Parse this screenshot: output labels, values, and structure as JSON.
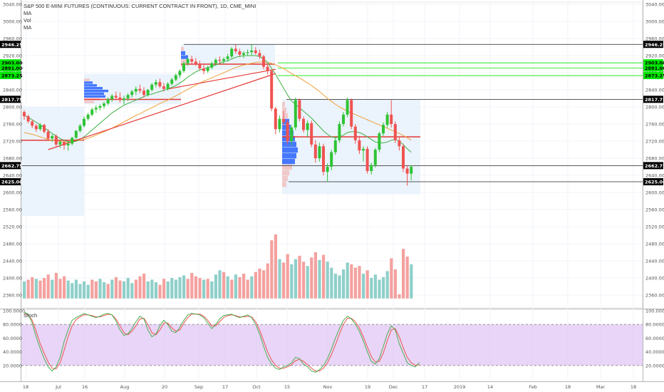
{
  "legend": {
    "title": "S&P 500 E-MINI FUTURES (CONTINUOUS: CURRENT CONTRACT IN FRONT), 1D, CME_MINI",
    "ma1": "MA",
    "vol": "Vol",
    "ma2": "MA"
  },
  "stoch_label": "Stoch",
  "colors": {
    "up": "#26a69a",
    "up_bright": "#2fc335",
    "down": "#ef5350",
    "vol_up": "#8fcfc9",
    "vol_down": "#f4a19f",
    "ma_fast": "#3cb043",
    "ma_slow": "#f0a13a",
    "trend": "#e53935",
    "level_green": "#00e600",
    "stoch_k": "#4caf50",
    "stoch_d": "#ef5350",
    "stoch_band": "#e2cbf5"
  },
  "chart_data": {
    "type": "candlestick",
    "price_axis_labels": [
      "3040.00",
      "3000.00",
      "2960.00",
      "2920.00",
      "2880.00",
      "2840.00",
      "2800.00",
      "2760.00",
      "2720.00",
      "2680.00",
      "2640.00",
      "2600.00",
      "2560.00",
      "2520.00",
      "2480.00",
      "2440.00",
      "2400.00",
      "2360.00"
    ],
    "price_range": [
      2330,
      3045
    ],
    "price_flags": [
      {
        "text": "2946.25",
        "value": 2946.25,
        "color": "#000000"
      },
      {
        "text": "2903.00",
        "value": 2903.0,
        "color": "#00e600"
      },
      {
        "text": "2891.00",
        "value": 2891.0,
        "color": "#00e600"
      },
      {
        "text": "2873.25",
        "value": 2873.25,
        "color": "#00e600"
      },
      {
        "text": "2817.75",
        "value": 2817.75,
        "color": "#000000"
      },
      {
        "text": "2662.75",
        "value": 2662.75,
        "color": "#000000"
      },
      {
        "text": "2625.00",
        "value": 2625.0,
        "color": "#000000"
      }
    ],
    "stoch_axis_labels": [
      "100.0000",
      "80.0000",
      "60.0000",
      "40.0000",
      "20.0000"
    ],
    "stoch_range": [
      0,
      100
    ],
    "stoch_band": [
      20,
      80
    ],
    "x_axis_labels": [
      "18",
      "Jul",
      "16",
      "Aug",
      "20",
      "Sep",
      "17",
      "Oct",
      "15",
      "Nov",
      "19",
      "Dec",
      "17",
      "2019",
      "14",
      "Feb",
      "18",
      "Mar",
      "18"
    ],
    "candles": [
      [
        2788,
        2792,
        2770,
        2778
      ],
      [
        2778,
        2782,
        2762,
        2766
      ],
      [
        2766,
        2770,
        2750,
        2756
      ],
      [
        2756,
        2760,
        2742,
        2748
      ],
      [
        2748,
        2762,
        2744,
        2758
      ],
      [
        2758,
        2760,
        2738,
        2742
      ],
      [
        2742,
        2748,
        2720,
        2726
      ],
      [
        2726,
        2736,
        2718,
        2732
      ],
      [
        2732,
        2736,
        2708,
        2712
      ],
      [
        2712,
        2722,
        2704,
        2718
      ],
      [
        2718,
        2724,
        2700,
        2710
      ],
      [
        2710,
        2718,
        2698,
        2714
      ],
      [
        2714,
        2730,
        2710,
        2728
      ],
      [
        2728,
        2746,
        2724,
        2744
      ],
      [
        2744,
        2760,
        2740,
        2756
      ],
      [
        2756,
        2778,
        2752,
        2772
      ],
      [
        2772,
        2786,
        2768,
        2782
      ],
      [
        2782,
        2798,
        2778,
        2794
      ],
      [
        2794,
        2804,
        2786,
        2798
      ],
      [
        2798,
        2806,
        2792,
        2802
      ],
      [
        2802,
        2812,
        2796,
        2808
      ],
      [
        2808,
        2822,
        2804,
        2818
      ],
      [
        2818,
        2830,
        2812,
        2826
      ],
      [
        2826,
        2836,
        2816,
        2822
      ],
      [
        2822,
        2834,
        2810,
        2816
      ],
      [
        2816,
        2826,
        2806,
        2820
      ],
      [
        2820,
        2832,
        2814,
        2828
      ],
      [
        2828,
        2840,
        2822,
        2836
      ],
      [
        2836,
        2848,
        2828,
        2842
      ],
      [
        2842,
        2852,
        2832,
        2838
      ],
      [
        2838,
        2846,
        2822,
        2828
      ],
      [
        2828,
        2842,
        2824,
        2840
      ],
      [
        2840,
        2856,
        2836,
        2852
      ],
      [
        2852,
        2864,
        2846,
        2858
      ],
      [
        2858,
        2866,
        2844,
        2848
      ],
      [
        2848,
        2856,
        2836,
        2842
      ],
      [
        2842,
        2858,
        2838,
        2854
      ],
      [
        2854,
        2868,
        2850,
        2864
      ],
      [
        2864,
        2878,
        2860,
        2874
      ],
      [
        2874,
        2888,
        2868,
        2884
      ],
      [
        2884,
        2906,
        2880,
        2902
      ],
      [
        2902,
        2916,
        2896,
        2912
      ],
      [
        2912,
        2920,
        2900,
        2906
      ],
      [
        2906,
        2914,
        2896,
        2900
      ],
      [
        2900,
        2908,
        2886,
        2890
      ],
      [
        2890,
        2898,
        2876,
        2884
      ],
      [
        2884,
        2896,
        2880,
        2892
      ],
      [
        2892,
        2906,
        2888,
        2902
      ],
      [
        2902,
        2914,
        2896,
        2910
      ],
      [
        2910,
        2918,
        2902,
        2908
      ],
      [
        2908,
        2916,
        2900,
        2912
      ],
      [
        2912,
        2924,
        2906,
        2918
      ],
      [
        2918,
        2940,
        2914,
        2936
      ],
      [
        2936,
        2946,
        2924,
        2930
      ],
      [
        2930,
        2936,
        2918,
        2922
      ],
      [
        2922,
        2930,
        2914,
        2926
      ],
      [
        2926,
        2934,
        2920,
        2928
      ],
      [
        2928,
        2946,
        2920,
        2932
      ],
      [
        2932,
        2940,
        2922,
        2926
      ],
      [
        2926,
        2934,
        2912,
        2918
      ],
      [
        2918,
        2922,
        2888,
        2894
      ],
      [
        2894,
        2900,
        2876,
        2884
      ],
      [
        2884,
        2888,
        2790,
        2796
      ],
      [
        2796,
        2800,
        2736,
        2748
      ],
      [
        2748,
        2780,
        2740,
        2772
      ],
      [
        2772,
        2790,
        2756,
        2764
      ],
      [
        2764,
        2770,
        2712,
        2720
      ],
      [
        2720,
        2758,
        2710,
        2752
      ],
      [
        2752,
        2822,
        2746,
        2816
      ],
      [
        2816,
        2820,
        2766,
        2772
      ],
      [
        2772,
        2778,
        2740,
        2746
      ],
      [
        2746,
        2768,
        2730,
        2762
      ],
      [
        2762,
        2768,
        2706,
        2712
      ],
      [
        2712,
        2722,
        2670,
        2680
      ],
      [
        2680,
        2716,
        2672,
        2708
      ],
      [
        2708,
        2714,
        2640,
        2648
      ],
      [
        2648,
        2668,
        2624,
        2660
      ],
      [
        2660,
        2700,
        2652,
        2694
      ],
      [
        2694,
        2728,
        2688,
        2722
      ],
      [
        2722,
        2766,
        2716,
        2760
      ],
      [
        2760,
        2788,
        2754,
        2782
      ],
      [
        2782,
        2822,
        2776,
        2816
      ],
      [
        2816,
        2820,
        2748,
        2754
      ],
      [
        2754,
        2760,
        2714,
        2722
      ],
      [
        2722,
        2732,
        2690,
        2698
      ],
      [
        2698,
        2708,
        2672,
        2702
      ],
      [
        2702,
        2708,
        2644,
        2650
      ],
      [
        2650,
        2670,
        2642,
        2664
      ],
      [
        2664,
        2704,
        2658,
        2700
      ],
      [
        2700,
        2742,
        2694,
        2738
      ],
      [
        2738,
        2764,
        2732,
        2758
      ],
      [
        2758,
        2788,
        2752,
        2782
      ],
      [
        2782,
        2816,
        2752,
        2760
      ],
      [
        2760,
        2766,
        2716,
        2722
      ],
      [
        2722,
        2730,
        2698,
        2708
      ],
      [
        2708,
        2714,
        2648,
        2656
      ],
      [
        2656,
        2664,
        2616,
        2644
      ],
      [
        2644,
        2664,
        2628,
        2660
      ]
    ],
    "volume": [
      [
        2392,
        "up"
      ],
      [
        2396,
        "down"
      ],
      [
        2402,
        "down"
      ],
      [
        2398,
        "up"
      ],
      [
        2394,
        "down"
      ],
      [
        2400,
        "down"
      ],
      [
        2408,
        "down"
      ],
      [
        2396,
        "up"
      ],
      [
        2412,
        "down"
      ],
      [
        2398,
        "down"
      ],
      [
        2404,
        "down"
      ],
      [
        2394,
        "up"
      ],
      [
        2388,
        "up"
      ],
      [
        2396,
        "up"
      ],
      [
        2386,
        "up"
      ],
      [
        2392,
        "up"
      ],
      [
        2384,
        "up"
      ],
      [
        2396,
        "down"
      ],
      [
        2392,
        "down"
      ],
      [
        2398,
        "up"
      ],
      [
        2390,
        "up"
      ],
      [
        2386,
        "down"
      ],
      [
        2396,
        "up"
      ],
      [
        2402,
        "down"
      ],
      [
        2394,
        "down"
      ],
      [
        2392,
        "up"
      ],
      [
        2400,
        "up"
      ],
      [
        2388,
        "up"
      ],
      [
        2396,
        "down"
      ],
      [
        2404,
        "down"
      ],
      [
        2410,
        "down"
      ],
      [
        2392,
        "up"
      ],
      [
        2396,
        "up"
      ],
      [
        2390,
        "up"
      ],
      [
        2384,
        "down"
      ],
      [
        2398,
        "down"
      ],
      [
        2392,
        "up"
      ],
      [
        2400,
        "up"
      ],
      [
        2396,
        "up"
      ],
      [
        2402,
        "up"
      ],
      [
        2406,
        "up"
      ],
      [
        2398,
        "down"
      ],
      [
        2412,
        "down"
      ],
      [
        2404,
        "down"
      ],
      [
        2400,
        "down"
      ],
      [
        2396,
        "up"
      ],
      [
        2398,
        "down"
      ],
      [
        2392,
        "up"
      ],
      [
        2408,
        "up"
      ],
      [
        2418,
        "up"
      ],
      [
        2414,
        "down"
      ],
      [
        2404,
        "up"
      ],
      [
        2396,
        "down"
      ],
      [
        2408,
        "up"
      ],
      [
        2402,
        "down"
      ],
      [
        2410,
        "down"
      ],
      [
        2396,
        "down"
      ],
      [
        2404,
        "up"
      ],
      [
        2414,
        "down"
      ],
      [
        2422,
        "down"
      ],
      [
        2418,
        "down"
      ],
      [
        2434,
        "down"
      ],
      [
        2488,
        "down"
      ],
      [
        2502,
        "down"
      ],
      [
        2444,
        "up"
      ],
      [
        2436,
        "down"
      ],
      [
        2456,
        "down"
      ],
      [
        2432,
        "up"
      ],
      [
        2444,
        "up"
      ],
      [
        2452,
        "down"
      ],
      [
        2438,
        "down"
      ],
      [
        2428,
        "up"
      ],
      [
        2448,
        "down"
      ],
      [
        2460,
        "down"
      ],
      [
        2442,
        "up"
      ],
      [
        2454,
        "down"
      ],
      [
        2438,
        "up"
      ],
      [
        2424,
        "up"
      ],
      [
        2410,
        "up"
      ],
      [
        2406,
        "up"
      ],
      [
        2420,
        "up"
      ],
      [
        2436,
        "up"
      ],
      [
        2432,
        "down"
      ],
      [
        2424,
        "down"
      ],
      [
        2428,
        "down"
      ],
      [
        2410,
        "up"
      ],
      [
        2418,
        "down"
      ],
      [
        2400,
        "up"
      ],
      [
        2408,
        "up"
      ],
      [
        2396,
        "up"
      ],
      [
        2402,
        "up"
      ],
      [
        2416,
        "up"
      ],
      [
        2446,
        "down"
      ],
      [
        2420,
        "down"
      ],
      [
        2362,
        "down"
      ],
      [
        2468,
        "down"
      ],
      [
        2450,
        "down"
      ],
      [
        2432,
        "up"
      ]
    ],
    "stoch_k": [
      98,
      95,
      82,
      62,
      45,
      30,
      18,
      12,
      18,
      32,
      55,
      72,
      86,
      90,
      93,
      96,
      94,
      92,
      90,
      92,
      95,
      96,
      94,
      85,
      72,
      64,
      66,
      74,
      84,
      92,
      88,
      72,
      62,
      66,
      78,
      86,
      80,
      70,
      68,
      76,
      86,
      94,
      96,
      95,
      94,
      90,
      82,
      74,
      80,
      88,
      93,
      94,
      95,
      92,
      90,
      92,
      94,
      90,
      80,
      66,
      48,
      32,
      22,
      16,
      14,
      18,
      20,
      24,
      32,
      30,
      22,
      18,
      12,
      10,
      14,
      20,
      30,
      44,
      60,
      74,
      86,
      92,
      88,
      80,
      70,
      56,
      40,
      26,
      22,
      30,
      48,
      66,
      78,
      72,
      52,
      38,
      24,
      20,
      18,
      24
    ],
    "stoch_d": [
      96,
      94,
      86,
      70,
      52,
      38,
      25,
      16,
      15,
      24,
      42,
      62,
      78,
      87,
      91,
      94,
      94,
      93,
      91,
      91,
      93,
      95,
      94,
      88,
      78,
      68,
      65,
      70,
      78,
      88,
      89,
      80,
      68,
      65,
      72,
      82,
      82,
      75,
      70,
      72,
      82,
      90,
      95,
      95,
      95,
      92,
      86,
      78,
      78,
      84,
      90,
      93,
      94,
      93,
      91,
      91,
      92,
      91,
      84,
      72,
      56,
      40,
      28,
      20,
      16,
      16,
      18,
      21,
      27,
      29,
      26,
      21,
      16,
      12,
      12,
      16,
      24,
      36,
      50,
      66,
      80,
      89,
      89,
      84,
      75,
      62,
      47,
      33,
      25,
      26,
      38,
      56,
      72,
      74,
      62,
      46,
      32,
      24,
      20,
      21
    ],
    "ma_fast": [
      2780,
      2776,
      2770,
      2764,
      2758,
      2752,
      2744,
      2738,
      2732,
      2726,
      2722,
      2719,
      2718,
      2720,
      2724,
      2730,
      2738,
      2746,
      2754,
      2762,
      2770,
      2778,
      2786,
      2792,
      2798,
      2804,
      2808,
      2812,
      2816,
      2820,
      2824,
      2828,
      2830,
      2833,
      2836,
      2839,
      2842,
      2846,
      2850,
      2856,
      2862,
      2870,
      2876,
      2882,
      2886,
      2889,
      2892,
      2895,
      2898,
      2902,
      2906,
      2908,
      2912,
      2916,
      2918,
      2920,
      2920,
      2920,
      2920,
      2918,
      2912,
      2904,
      2890,
      2876,
      2860,
      2844,
      2828,
      2814,
      2806,
      2798,
      2790,
      2782,
      2774,
      2764,
      2754,
      2744,
      2736,
      2730,
      2728,
      2730,
      2734,
      2740,
      2742,
      2742,
      2740,
      2736,
      2730,
      2724,
      2718,
      2716,
      2716,
      2718,
      2722,
      2724,
      2720,
      2712,
      2702,
      2694
    ],
    "ma_slow": [
      2740,
      2738,
      2736,
      2733,
      2730,
      2727,
      2724,
      2722,
      2720,
      2719,
      2718,
      2718,
      2719,
      2720,
      2722,
      2724,
      2727,
      2730,
      2734,
      2738,
      2742,
      2746,
      2750,
      2755,
      2760,
      2765,
      2770,
      2775,
      2780,
      2784,
      2789,
      2794,
      2798,
      2803,
      2808,
      2812,
      2816,
      2821,
      2826,
      2831,
      2836,
      2841,
      2846,
      2851,
      2856,
      2860,
      2864,
      2868,
      2872,
      2876,
      2880,
      2884,
      2888,
      2892,
      2895,
      2898,
      2900,
      2902,
      2904,
      2905,
      2905,
      2904,
      2902,
      2898,
      2894,
      2890,
      2884,
      2878,
      2873,
      2868,
      2862,
      2856,
      2850,
      2843,
      2836,
      2828,
      2820,
      2813,
      2806,
      2800,
      2795,
      2790,
      2786,
      2782,
      2778,
      2774,
      2770,
      2766,
      2762,
      2758,
      2754,
      2750,
      2746,
      2742,
      2738,
      2733,
      2728,
      2722
    ]
  }
}
